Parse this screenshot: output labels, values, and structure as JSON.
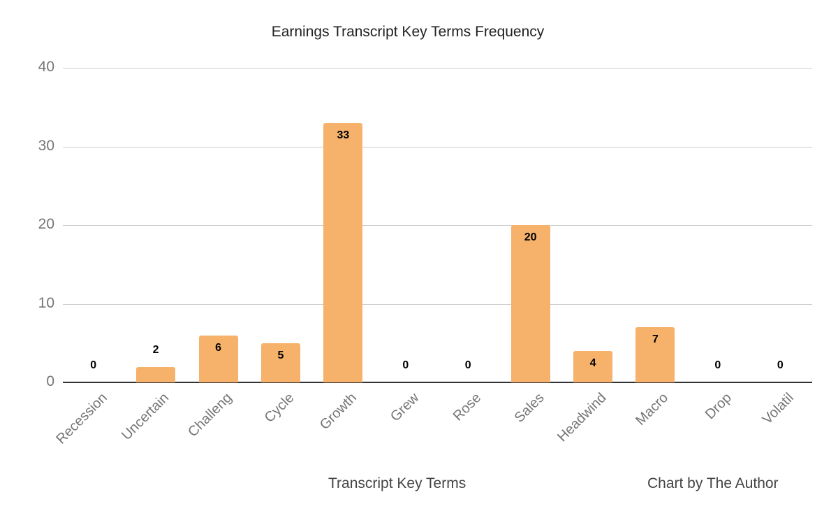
{
  "chart_data": {
    "type": "bar",
    "title": "Earnings Transcript Key Terms Frequency",
    "xlabel": "Transcript Key Terms",
    "ylabel": "",
    "categories": [
      "Recession",
      "Uncertain",
      "Challeng",
      "Cycle",
      "Growth",
      "Grew",
      "Rose",
      "Sales",
      "Headwind",
      "Macro",
      "Drop",
      "Volatil"
    ],
    "values": [
      0,
      2,
      6,
      5,
      33,
      0,
      0,
      20,
      4,
      7,
      0,
      0
    ],
    "ylim": [
      0,
      40
    ],
    "yticks": [
      0,
      10,
      20,
      30,
      40
    ],
    "grid": true,
    "legend": "none",
    "bar_color": "#f6b26b",
    "data_labels": true
  },
  "annotation": {
    "credit": "Chart by The Author"
  }
}
